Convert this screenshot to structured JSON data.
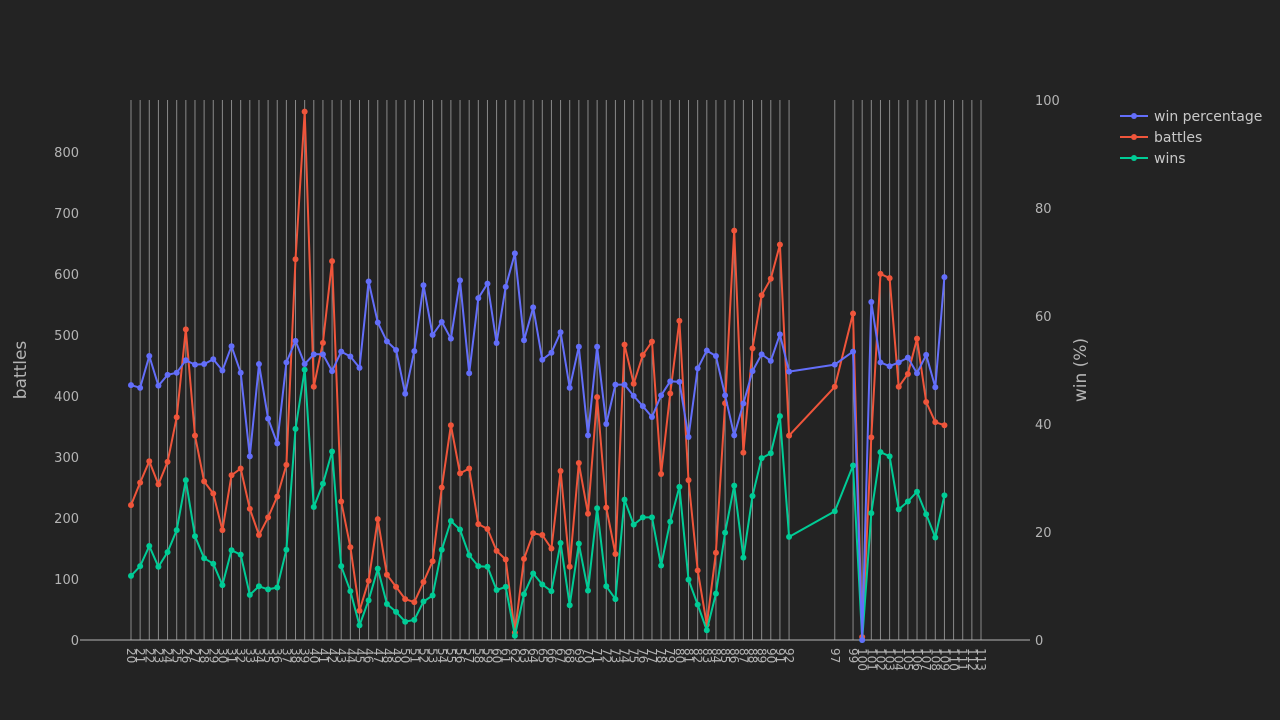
{
  "chart_data": {
    "type": "line",
    "x": [
      20,
      21,
      22,
      23,
      24,
      25,
      26,
      27,
      28,
      29,
      30,
      31,
      32,
      33,
      34,
      35,
      36,
      37,
      38,
      39,
      40,
      41,
      42,
      43,
      44,
      45,
      46,
      47,
      48,
      49,
      50,
      51,
      52,
      53,
      54,
      55,
      56,
      57,
      58,
      59,
      60,
      61,
      62,
      63,
      64,
      65,
      66,
      67,
      68,
      69,
      70,
      71,
      72,
      73,
      74,
      75,
      76,
      77,
      78,
      79,
      80,
      81,
      82,
      83,
      84,
      85,
      86,
      87,
      88,
      89,
      90,
      91,
      92,
      97,
      99,
      100,
      101,
      102,
      103,
      104,
      105,
      106,
      107,
      108,
      109,
      110,
      111,
      112,
      113
    ],
    "x_end": 113,
    "x_tick_labels": [
      "20",
      "21",
      "22",
      "23",
      "24",
      "25",
      "26",
      "27",
      "28",
      "29",
      "30",
      "31",
      "32",
      "33",
      "34",
      "35",
      "36",
      "37",
      "38",
      "39",
      "40",
      "41",
      "42",
      "43",
      "44",
      "45",
      "46",
      "47",
      "48",
      "49",
      "50",
      "51",
      "52",
      "53",
      "54",
      "55",
      "56",
      "57",
      "58",
      "59",
      "60",
      "61",
      "62",
      "63",
      "64",
      "65",
      "66",
      "67",
      "68",
      "69",
      "70",
      "71",
      "72",
      "73",
      "74",
      "75",
      "76",
      "77",
      "78",
      "79",
      "80",
      "81",
      "82",
      "83",
      "84",
      "85",
      "86",
      "87",
      "88",
      "89",
      "90",
      "91",
      "92",
      "97",
      "99",
      "100",
      "101",
      "102",
      "103",
      "104",
      "105",
      "106",
      "107",
      "108",
      "109",
      "110",
      "111",
      "112",
      "113"
    ],
    "y_left": {
      "title": "battles",
      "range": [
        0,
        885
      ],
      "ticks": [
        0,
        100,
        200,
        300,
        400,
        500,
        600,
        700,
        800
      ]
    },
    "y_right": {
      "title": "win (%)",
      "range": [
        0,
        100
      ],
      "ticks": [
        0,
        20,
        40,
        60,
        80,
        100
      ]
    },
    "legend_position": "top-right",
    "colors": {
      "background": "#232323",
      "grid": "#8a8a8a",
      "text": "#b4b4b4"
    },
    "series": [
      {
        "name": "win percentage",
        "axis": "right",
        "color": "#636efa",
        "x": [
          20,
          21,
          22,
          23,
          24,
          25,
          26,
          27,
          28,
          29,
          30,
          31,
          32,
          33,
          34,
          35,
          36,
          37,
          38,
          39,
          40,
          41,
          42,
          43,
          44,
          45,
          46,
          47,
          48,
          49,
          50,
          51,
          52,
          53,
          54,
          55,
          56,
          57,
          58,
          59,
          60,
          61,
          62,
          63,
          64,
          65,
          66,
          67,
          68,
          69,
          70,
          71,
          72,
          73,
          74,
          75,
          76,
          77,
          78,
          79,
          80,
          81,
          82,
          83,
          84,
          85,
          86,
          87,
          88,
          89,
          90,
          91,
          92,
          97,
          99,
          100,
          101,
          102,
          103,
          104,
          105,
          106,
          107,
          108,
          109
        ],
        "values": [
          47.2,
          46.7,
          52.6,
          47.1,
          49.1,
          49.5,
          51.8,
          51.0,
          51.1,
          52.0,
          49.9,
          54.4,
          49.5,
          34.0,
          51.1,
          41.0,
          36.4,
          51.4,
          55.4,
          51.1,
          52.9,
          52.9,
          49.8,
          53.4,
          52.5,
          50.4,
          66.4,
          58.8,
          55.3,
          53.7,
          45.6,
          53.5,
          65.7,
          56.5,
          58.9,
          55.8,
          66.6,
          49.4,
          63.3,
          66.0,
          55.0,
          65.4,
          71.6,
          55.5,
          61.6,
          51.9,
          53.2,
          57.0,
          46.7,
          54.3,
          37.9,
          54.3,
          40.0,
          47.3,
          47.3,
          45.2,
          43.3,
          41.3,
          45.3,
          47.9,
          47.8,
          37.6,
          50.3,
          53.6,
          52.6,
          45.3,
          37.9,
          43.8,
          49.8,
          52.9,
          51.7,
          56.6,
          49.7,
          51.0,
          53.4,
          0.0,
          62.6,
          51.4,
          50.7,
          51.4,
          52.3,
          49.4,
          52.8,
          46.8,
          67.2
        ]
      },
      {
        "name": "battles",
        "axis": "left",
        "color": "#ef553b",
        "x": [
          20,
          21,
          22,
          23,
          24,
          25,
          26,
          27,
          28,
          29,
          30,
          31,
          32,
          33,
          34,
          35,
          36,
          37,
          38,
          39,
          40,
          41,
          42,
          43,
          44,
          45,
          46,
          47,
          48,
          49,
          50,
          51,
          52,
          53,
          54,
          55,
          56,
          57,
          58,
          59,
          60,
          61,
          62,
          63,
          64,
          65,
          66,
          67,
          68,
          69,
          70,
          71,
          72,
          73,
          74,
          75,
          76,
          77,
          78,
          79,
          80,
          81,
          82,
          83,
          84,
          85,
          86,
          87,
          88,
          89,
          90,
          91,
          92,
          97,
          99,
          100,
          101,
          102,
          103,
          104,
          105,
          106,
          107,
          108,
          109
        ],
        "values": [
          221,
          258,
          293,
          255,
          292,
          365,
          509,
          335,
          260,
          240,
          180,
          270,
          281,
          215,
          172,
          201,
          235,
          287,
          624,
          866,
          415,
          487,
          621,
          227,
          152,
          48,
          97,
          198,
          107,
          87,
          67,
          62,
          95,
          129,
          250,
          352,
          273,
          281,
          190,
          182,
          146,
          132,
          12,
          133,
          175,
          172,
          150,
          277,
          120,
          290,
          207,
          398,
          217,
          141,
          484,
          420,
          467,
          489,
          272,
          404,
          523,
          262,
          114,
          25,
          143,
          388,
          671,
          307,
          478,
          565,
          592,
          648,
          335,
          415,
          535,
          5,
          332,
          600,
          593,
          415,
          436,
          494,
          390,
          357,
          352
        ]
      },
      {
        "name": "wins",
        "axis": "left",
        "color": "#00cc96",
        "x": [
          20,
          21,
          22,
          23,
          24,
          25,
          26,
          27,
          28,
          29,
          30,
          31,
          32,
          33,
          34,
          35,
          36,
          37,
          38,
          39,
          40,
          41,
          42,
          43,
          44,
          45,
          46,
          47,
          48,
          49,
          50,
          51,
          52,
          53,
          54,
          55,
          56,
          57,
          58,
          59,
          60,
          61,
          62,
          63,
          64,
          65,
          66,
          67,
          68,
          69,
          70,
          71,
          72,
          73,
          74,
          75,
          76,
          77,
          78,
          79,
          80,
          81,
          82,
          83,
          84,
          85,
          86,
          87,
          88,
          89,
          90,
          91,
          92,
          97,
          99,
          100,
          101,
          102,
          103,
          104,
          105,
          106,
          107,
          108,
          109
        ],
        "values": [
          105,
          121,
          154,
          120,
          144,
          180,
          262,
          170,
          134,
          125,
          90,
          147,
          140,
          74,
          88,
          83,
          86,
          148,
          346,
          443,
          218,
          256,
          309,
          121,
          80,
          24,
          65,
          117,
          59,
          46,
          30,
          33,
          63,
          73,
          148,
          195,
          181,
          139,
          121,
          120,
          82,
          87,
          7,
          75,
          109,
          91,
          80,
          159,
          57,
          158,
          81,
          216,
          88,
          67,
          230,
          189,
          201,
          201,
          122,
          194,
          251,
          99,
          58,
          16,
          76,
          176,
          253,
          135,
          236,
          298,
          306,
          367,
          169,
          211,
          286,
          0,
          208,
          308,
          301,
          214,
          227,
          243,
          206,
          168,
          237
        ]
      }
    ]
  }
}
